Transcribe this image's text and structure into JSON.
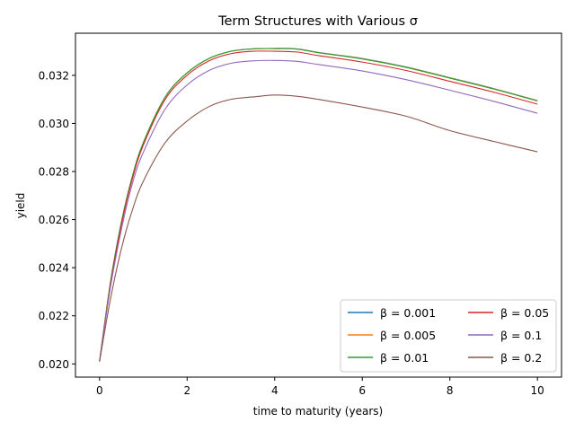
{
  "chart_data": {
    "type": "line",
    "title": "Term Structures with Various σ",
    "xlabel": "time to maturity (years)",
    "ylabel": "yield",
    "xlim": [
      -0.55,
      10.55
    ],
    "ylim": [
      0.01945,
      0.03375
    ],
    "xticks": [
      0,
      2,
      4,
      6,
      8,
      10
    ],
    "yticks": [
      0.02,
      0.022,
      0.024,
      0.026,
      0.028,
      0.03,
      0.032
    ],
    "ytick_format": 3,
    "grid": false,
    "legend_position": "lower-right",
    "legend_columns": 2,
    "x": [
      0,
      0.25,
      0.5,
      0.75,
      1,
      1.5,
      2,
      2.5,
      3,
      3.5,
      4,
      4.5,
      5,
      6,
      7,
      8,
      9,
      10
    ],
    "series": [
      {
        "name": "β = 0.001",
        "color": "#1f77b4",
        "values": [
          0.0201,
          0.0234,
          0.0259,
          0.0278,
          0.0292,
          0.0311,
          0.0321,
          0.0327,
          0.033,
          0.0331,
          0.03312,
          0.0331,
          0.03295,
          0.0327,
          0.03235,
          0.0319,
          0.03145,
          0.03095
        ]
      },
      {
        "name": "β = 0.005",
        "color": "#ff7f0e",
        "values": [
          0.0201,
          0.0234,
          0.0259,
          0.0278,
          0.0292,
          0.0311,
          0.0321,
          0.0327,
          0.033,
          0.0331,
          0.03311,
          0.03309,
          0.03294,
          0.03269,
          0.03234,
          0.03189,
          0.03144,
          0.03094
        ]
      },
      {
        "name": "β = 0.01",
        "color": "#2ca02c",
        "values": [
          0.0201,
          0.0234,
          0.0259,
          0.0278,
          0.0292,
          0.0311,
          0.0321,
          0.0327,
          0.033,
          0.0331,
          0.03311,
          0.03309,
          0.03294,
          0.03268,
          0.03233,
          0.03188,
          0.03143,
          0.03093
        ]
      },
      {
        "name": "β = 0.05",
        "color": "#d62728",
        "values": [
          0.0201,
          0.0233,
          0.0258,
          0.0277,
          0.0291,
          0.031,
          0.032,
          0.0326,
          0.0329,
          0.033,
          0.033,
          0.03297,
          0.03282,
          0.03255,
          0.0322,
          0.03175,
          0.0313,
          0.0308
        ]
      },
      {
        "name": "β = 0.1",
        "color": "#9467bd",
        "values": [
          0.0201,
          0.0232,
          0.0256,
          0.0275,
          0.0288,
          0.0306,
          0.0316,
          0.0322,
          0.0325,
          0.0326,
          0.03262,
          0.03258,
          0.03245,
          0.03218,
          0.03182,
          0.03138,
          0.03092,
          0.03042
        ]
      },
      {
        "name": "β = 0.2",
        "color": "#8c564b",
        "values": [
          0.0201,
          0.0227,
          0.0248,
          0.0264,
          0.0276,
          0.0292,
          0.0301,
          0.0307,
          0.031,
          0.0311,
          0.03118,
          0.03113,
          0.031,
          0.03068,
          0.0303,
          0.0297,
          0.02925,
          0.02882
        ]
      }
    ]
  }
}
